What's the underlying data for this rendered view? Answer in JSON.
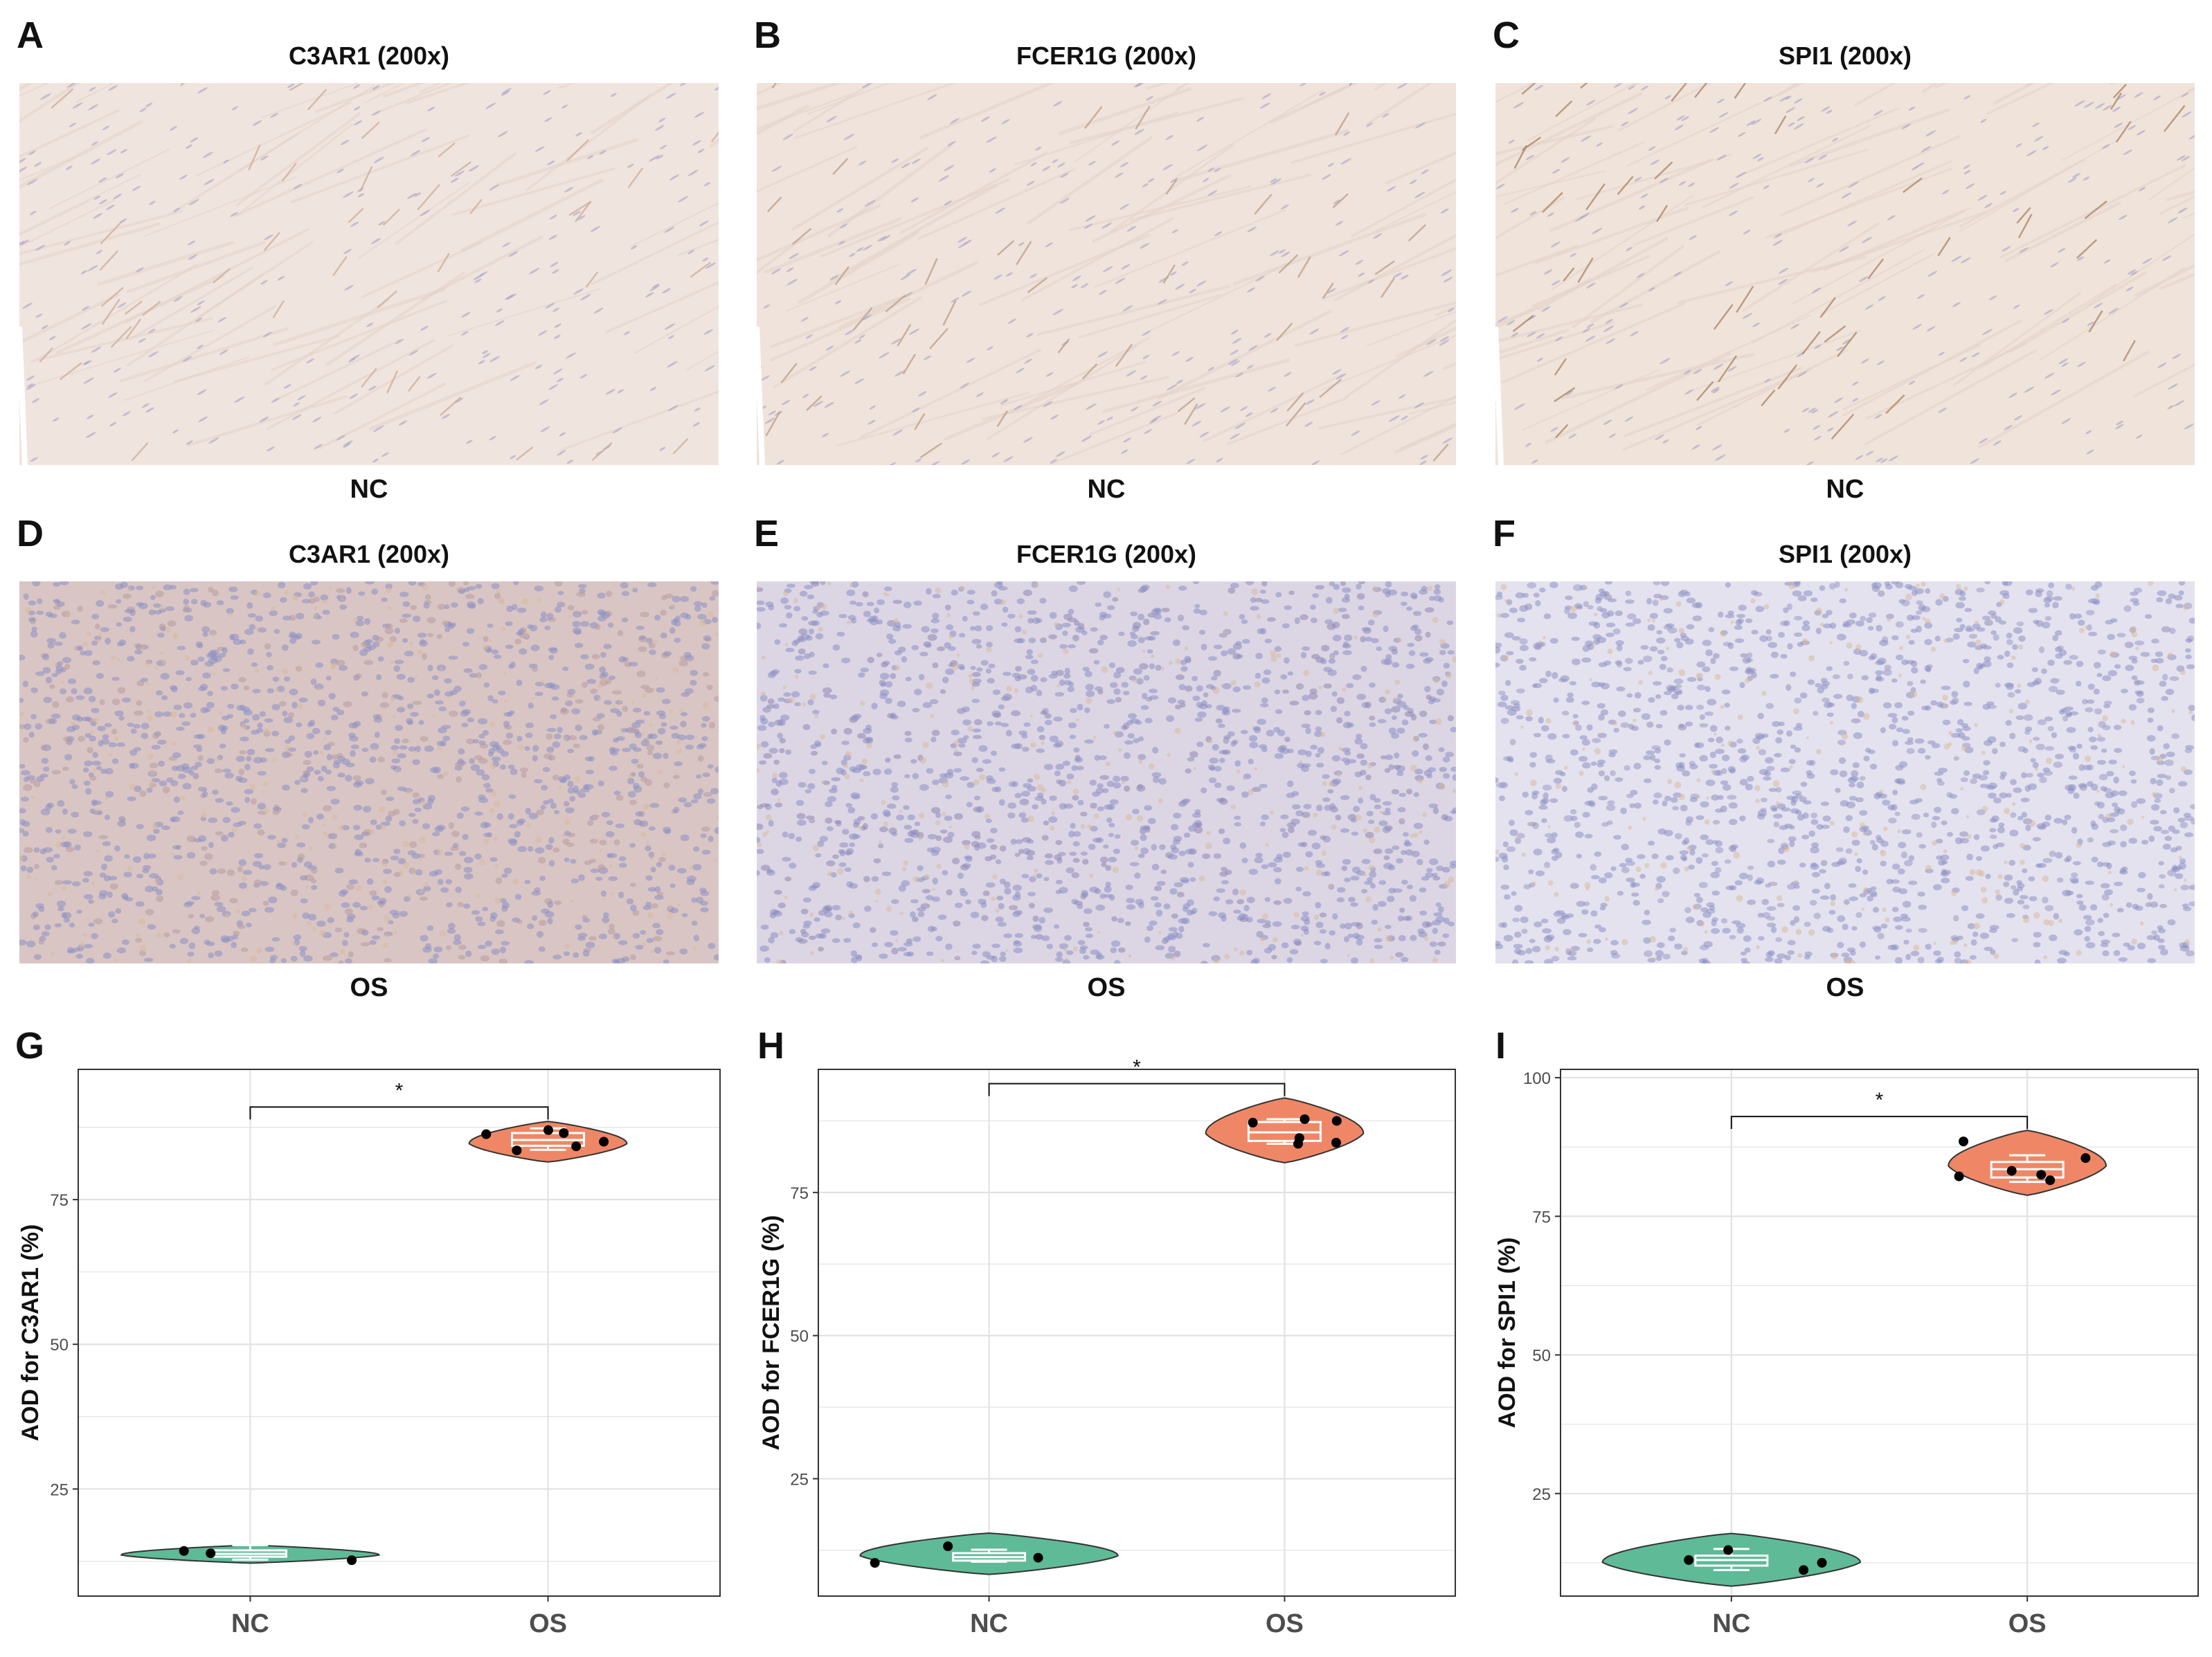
{
  "figure": {
    "micro_panels": [
      {
        "letter": "A",
        "title": "C3AR1 (200x)",
        "caption": "NC",
        "group": "NC",
        "stain_color": "#c9ab96",
        "base_color": "#f0e4de"
      },
      {
        "letter": "B",
        "title": "FCER1G (200x)",
        "caption": "NC",
        "group": "NC",
        "stain_color": "#b89a80",
        "base_color": "#efe3db"
      },
      {
        "letter": "C",
        "title": "SPI1 (200x)",
        "caption": "NC",
        "group": "NC",
        "stain_color": "#a57d5f",
        "base_color": "#f0e4da"
      },
      {
        "letter": "D",
        "title": "C3AR1 (200x)",
        "caption": "OS",
        "group": "OS",
        "stain_color": "#b89aa0",
        "base_color": "#d9c6c4"
      },
      {
        "letter": "E",
        "title": "FCER1G (200x)",
        "caption": "OS",
        "group": "OS",
        "stain_color": "#8f86b3",
        "base_color": "#dcd6e4"
      },
      {
        "letter": "F",
        "title": "SPI1 (200x)",
        "caption": "OS",
        "group": "OS",
        "stain_color": "#9a9bc8",
        "base_color": "#e4e2ee"
      }
    ]
  },
  "colors": {
    "nc_fill": "#5fba98",
    "os_fill": "#ef8766",
    "grid": "#e2e2e2"
  },
  "chart_data": [
    {
      "letter": "G",
      "type": "violin",
      "categories": [
        "NC",
        "OS"
      ],
      "ylabel": "AOD for C3AR1 (%)",
      "ylim": [
        6.5,
        97.5
      ],
      "yticks": [
        25,
        50,
        75
      ],
      "significance": "*",
      "groups": [
        {
          "name": "NC",
          "median": 13.8,
          "q1": 13.3,
          "q3": 14.4,
          "min": 12.8,
          "max": 15.3,
          "violin_min": 12.2,
          "violin_max": 15.3,
          "points": [
            13.9,
            14.3,
            12.7
          ]
        },
        {
          "name": "OS",
          "median": 85.3,
          "q1": 84.3,
          "q3": 86.5,
          "min": 83.6,
          "max": 87.3,
          "violin_min": 81.5,
          "violin_max": 88.5,
          "points": [
            86.5,
            86.3,
            87.0,
            85.0,
            83.5,
            84.2
          ]
        }
      ]
    },
    {
      "letter": "H",
      "type": "violin",
      "categories": [
        "NC",
        "OS"
      ],
      "ylabel": "AOD for FCER1G (%)",
      "ylim": [
        4.5,
        96.5
      ],
      "yticks": [
        25,
        50,
        75
      ],
      "significance": "*",
      "groups": [
        {
          "name": "NC",
          "median": 11.3,
          "q1": 10.7,
          "q3": 12.0,
          "min": 10.5,
          "max": 12.6,
          "violin_min": 8.3,
          "violin_max": 15.5,
          "points": [
            13.2,
            10.3,
            11.2
          ]
        },
        {
          "name": "OS",
          "median": 85.5,
          "q1": 84.0,
          "q3": 87.3,
          "min": 83.5,
          "max": 87.8,
          "violin_min": 80.2,
          "violin_max": 91.5,
          "points": [
            84.5,
            87.5,
            87.2,
            87.8,
            83.5,
            83.7
          ]
        }
      ]
    },
    {
      "letter": "I",
      "type": "violin",
      "categories": [
        "NC",
        "OS"
      ],
      "ylabel": "AOD for SPI1 (%)",
      "ylim": [
        6.5,
        101.5
      ],
      "yticks": [
        25,
        50,
        75,
        100
      ],
      "significance": "*",
      "groups": [
        {
          "name": "NC",
          "median": 13.0,
          "q1": 12.0,
          "q3": 13.8,
          "min": 11.2,
          "max": 15.0,
          "violin_min": 8.3,
          "violin_max": 17.8,
          "points": [
            13.0,
            11.2,
            14.8,
            12.5
          ]
        },
        {
          "name": "OS",
          "median": 83.5,
          "q1": 82.0,
          "q3": 84.8,
          "min": 81.2,
          "max": 86.0,
          "violin_min": 78.8,
          "violin_max": 90.5,
          "points": [
            82.5,
            81.5,
            88.5,
            83.2,
            85.5,
            82.2
          ]
        }
      ]
    }
  ]
}
